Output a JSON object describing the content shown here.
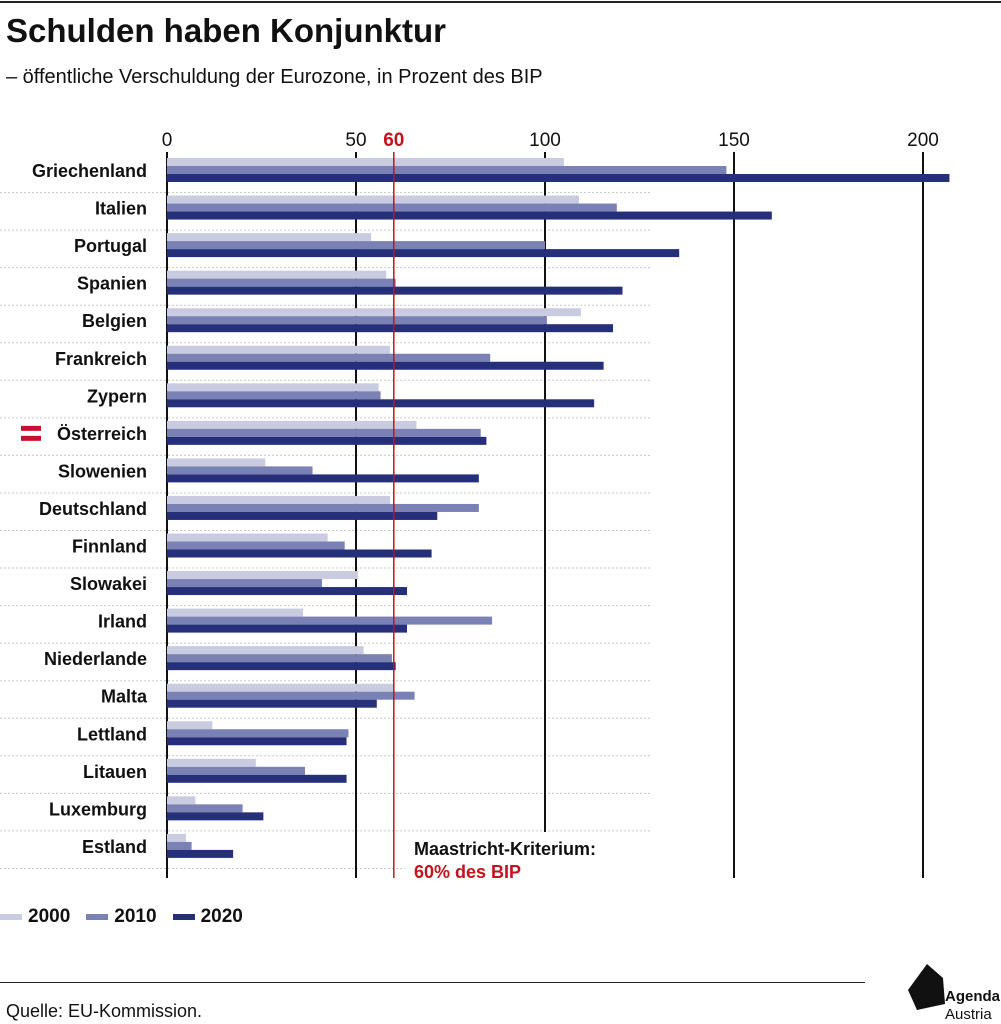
{
  "header": {
    "title": "Schulden haben Konjunktur",
    "subtitle": "– öffentliche Verschuldung der Eurozone, in Prozent des BIP"
  },
  "footer": {
    "source": "Quelle: EU-Kommission.",
    "logo_line1": "Agenda",
    "logo_line2": "Austria"
  },
  "colors": {
    "s2000": "#c9cbe0",
    "s2010": "#7a81b4",
    "s2020": "#26307a",
    "threshold": "#c0141e",
    "flag_red": "#c8102e"
  },
  "chart_data": {
    "type": "bar",
    "orientation": "horizontal",
    "title": "Schulden haben Konjunktur",
    "subtitle": "– öffentliche Verschuldung der Eurozone, in Prozent des BIP",
    "xlim": [
      0,
      210
    ],
    "xticks": [
      0,
      50,
      100,
      150,
      200
    ],
    "grid": true,
    "legend_position": "bottom-left",
    "highlight_category": "Österreich",
    "categories": [
      "Griechenland",
      "Italien",
      "Portugal",
      "Spanien",
      "Belgien",
      "Frankreich",
      "Zypern",
      "Österreich",
      "Slowenien",
      "Deutschland",
      "Finnland",
      "Slowakei",
      "Irland",
      "Niederlande",
      "Malta",
      "Lettland",
      "Litauen",
      "Luxemburg",
      "Estland"
    ],
    "series": [
      {
        "name": "2000",
        "values": [
          105,
          109,
          54,
          58,
          109.5,
          59,
          56,
          66,
          26,
          59,
          42.5,
          50.5,
          36,
          52,
          60,
          12,
          23.5,
          7.5,
          5
        ]
      },
      {
        "name": "2010",
        "values": [
          148,
          119,
          100,
          60.5,
          100.5,
          85.5,
          56.5,
          83,
          38.5,
          82.5,
          47,
          41,
          86,
          59.5,
          65.5,
          48,
          36.5,
          20,
          6.5
        ]
      },
      {
        "name": "2020",
        "values": [
          207,
          160,
          135.5,
          120.5,
          118,
          115.5,
          113,
          84.5,
          82.5,
          71.5,
          70,
          63.5,
          63.5,
          60.5,
          55.5,
          47.5,
          47.5,
          25.5,
          17.5
        ]
      }
    ],
    "threshold": {
      "value": 60,
      "label": "60",
      "annotation_line1": "Maastricht-Kriterium:",
      "annotation_line2": "60% des BIP"
    }
  }
}
